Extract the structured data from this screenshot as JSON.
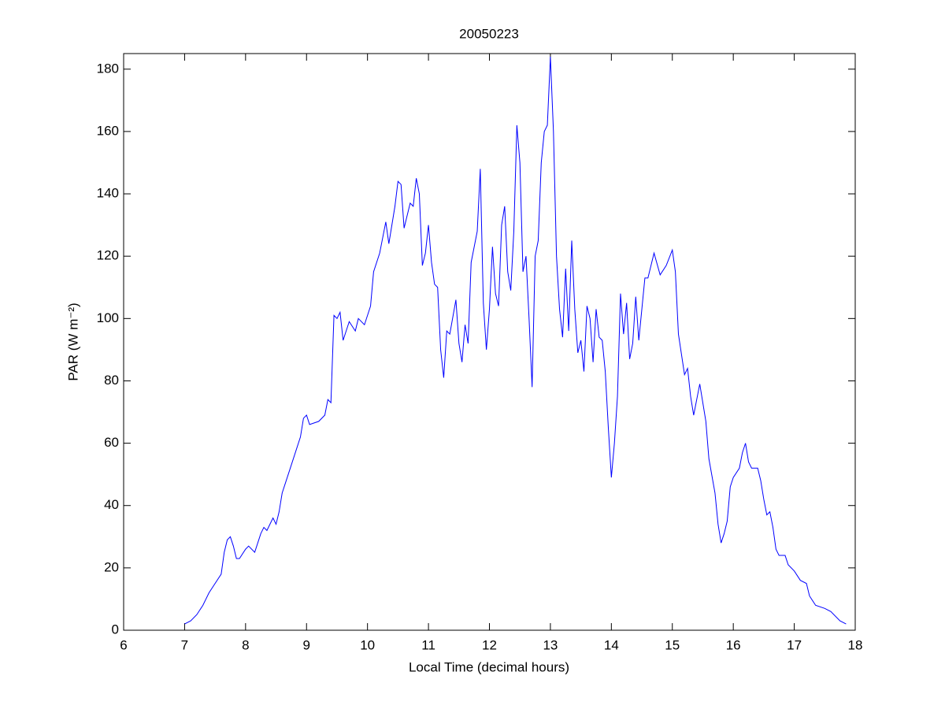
{
  "chart_data": {
    "type": "line",
    "title": "20050223",
    "x_label": "Local Time (decimal hours)",
    "y_label": "PAR (W m⁻²)",
    "x": [
      7.0,
      7.1,
      7.2,
      7.3,
      7.4,
      7.5,
      7.6,
      7.65,
      7.7,
      7.75,
      7.8,
      7.85,
      7.9,
      8.0,
      8.05,
      8.15,
      8.25,
      8.3,
      8.35,
      8.45,
      8.5,
      8.55,
      8.6,
      8.7,
      8.8,
      8.9,
      8.95,
      9.0,
      9.05,
      9.2,
      9.3,
      9.35,
      9.4,
      9.45,
      9.5,
      9.55,
      9.6,
      9.7,
      9.8,
      9.85,
      9.95,
      10.0,
      10.05,
      10.1,
      10.2,
      10.3,
      10.35,
      10.45,
      10.5,
      10.55,
      10.6,
      10.7,
      10.75,
      10.8,
      10.85,
      10.9,
      10.95,
      11.0,
      11.05,
      11.1,
      11.15,
      11.2,
      11.25,
      11.3,
      11.35,
      11.45,
      11.5,
      11.55,
      11.6,
      11.65,
      11.7,
      11.8,
      11.85,
      11.9,
      11.95,
      12.0,
      12.05,
      12.1,
      12.15,
      12.2,
      12.25,
      12.3,
      12.35,
      12.4,
      12.45,
      12.5,
      12.55,
      12.6,
      12.65,
      12.7,
      12.75,
      12.8,
      12.85,
      12.9,
      12.95,
      13.0,
      13.05,
      13.1,
      13.15,
      13.2,
      13.25,
      13.3,
      13.35,
      13.4,
      13.45,
      13.5,
      13.55,
      13.6,
      13.65,
      13.7,
      13.75,
      13.8,
      13.85,
      13.9,
      13.95,
      14.0,
      14.05,
      14.1,
      14.15,
      14.2,
      14.25,
      14.3,
      14.35,
      14.4,
      14.45,
      14.55,
      14.6,
      14.7,
      14.8,
      14.9,
      15.0,
      15.05,
      15.1,
      15.2,
      15.25,
      15.3,
      15.35,
      15.45,
      15.55,
      15.6,
      15.7,
      15.75,
      15.8,
      15.85,
      15.9,
      15.95,
      16.0,
      16.1,
      16.15,
      16.2,
      16.25,
      16.3,
      16.4,
      16.45,
      16.5,
      16.55,
      16.6,
      16.65,
      16.7,
      16.75,
      16.85,
      16.9,
      17.0,
      17.1,
      17.2,
      17.25,
      17.35,
      17.5,
      17.6,
      17.75,
      17.85
    ],
    "series": [
      {
        "name": "PAR",
        "color": "#0000ff",
        "values": [
          2,
          3,
          5,
          8,
          12,
          15,
          18,
          25,
          29,
          30,
          27,
          23,
          23,
          26,
          27,
          25,
          31,
          33,
          32,
          36,
          34,
          38,
          44,
          50,
          56,
          62,
          68,
          69,
          66,
          67,
          69,
          74,
          73,
          101,
          100,
          102,
          93,
          99,
          96,
          100,
          98,
          101,
          104,
          115,
          121,
          131,
          124,
          136,
          144,
          143,
          129,
          137,
          136,
          145,
          140,
          117,
          121,
          130,
          118,
          111,
          110,
          90,
          81,
          96,
          95,
          106,
          92,
          86,
          98,
          92,
          118,
          128,
          148,
          105,
          90,
          103,
          123,
          108,
          104,
          130,
          136,
          115,
          109,
          128,
          162,
          150,
          115,
          120,
          100,
          78,
          120,
          125,
          150,
          160,
          162,
          184,
          160,
          120,
          103,
          94,
          116,
          96,
          125,
          103,
          89,
          93,
          83,
          104,
          100,
          86,
          103,
          94,
          93,
          83,
          65,
          49,
          60,
          75,
          108,
          95,
          105,
          87,
          92,
          107,
          93,
          113,
          113,
          121,
          114,
          117,
          122,
          115,
          95,
          82,
          84,
          75,
          69,
          79,
          67,
          55,
          44,
          34,
          28,
          31,
          35,
          46,
          49,
          52,
          57,
          60,
          54,
          52,
          52,
          48,
          42,
          37,
          38,
          33,
          26,
          24,
          24,
          21,
          19,
          16,
          15,
          11,
          8,
          7,
          6,
          3,
          2
        ]
      }
    ],
    "xlim": [
      6,
      18
    ],
    "xticks": [
      6,
      7,
      8,
      9,
      10,
      11,
      12,
      13,
      14,
      15,
      16,
      17,
      18
    ],
    "ylim": [
      0,
      185
    ],
    "yticks": [
      0,
      20,
      40,
      60,
      80,
      100,
      120,
      140,
      160,
      180
    ]
  }
}
